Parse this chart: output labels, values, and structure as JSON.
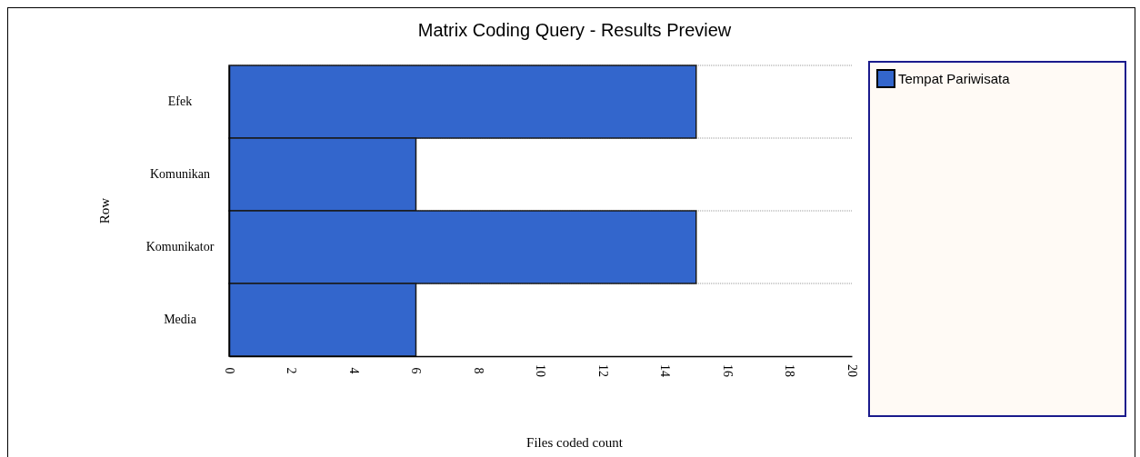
{
  "chart_data": {
    "type": "bar",
    "orientation": "horizontal",
    "title": "Matrix Coding Query - Results Preview",
    "xlabel": "Files coded count",
    "ylabel": "Row",
    "categories": [
      "Efek",
      "Komunikan",
      "Komunikator",
      "Media"
    ],
    "series": [
      {
        "name": "Tempat Pariwisata",
        "color": "#3366cc",
        "values": [
          15,
          6,
          15,
          6
        ]
      }
    ],
    "xlim": [
      0,
      20
    ],
    "xticks": [
      0,
      2,
      4,
      6,
      8,
      10,
      12,
      14,
      16,
      18,
      20
    ],
    "grid": "y",
    "legend": "right"
  }
}
